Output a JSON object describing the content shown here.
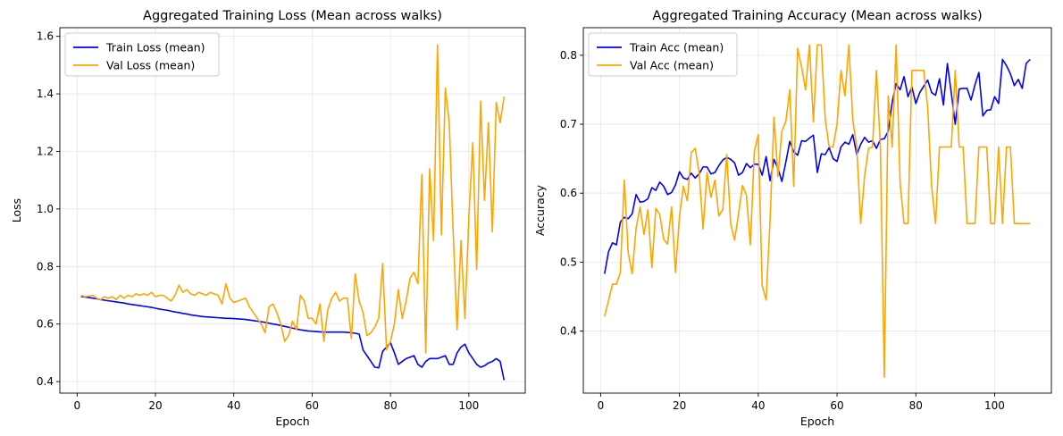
{
  "chart_data": [
    {
      "type": "line",
      "title": "Aggregated Training Loss (Mean across walks)",
      "xlabel": "Epoch",
      "ylabel": "Loss",
      "xlim": [
        -4.4,
        114.4
      ],
      "ylim": [
        0.36,
        1.63
      ],
      "xticks": [
        0,
        20,
        40,
        60,
        80,
        100
      ],
      "yticks": [
        0.4,
        0.6,
        0.8,
        1.0,
        1.2,
        1.4,
        1.6
      ],
      "ytick_decimals": 1,
      "grid": true,
      "legend_position": "top-left",
      "series": [
        {
          "name": "Train Loss (mean)",
          "color": "#0000ff",
          "x": [
            1,
            2,
            3,
            4,
            5,
            6,
            7,
            8,
            9,
            10,
            11,
            12,
            13,
            14,
            15,
            16,
            17,
            18,
            19,
            20,
            21,
            22,
            23,
            24,
            25,
            26,
            27,
            28,
            29,
            30,
            31,
            32,
            33,
            34,
            35,
            36,
            37,
            38,
            39,
            40,
            41,
            42,
            43,
            44,
            45,
            46,
            47,
            48,
            49,
            50,
            51,
            52,
            53,
            54,
            55,
            56,
            57,
            58,
            59,
            60,
            61,
            62,
            63,
            64,
            65,
            66,
            67,
            68,
            69,
            70,
            71,
            72,
            73,
            74,
            75,
            76,
            77,
            78,
            79,
            80,
            81,
            82,
            83,
            84,
            85,
            86,
            87,
            88,
            89,
            90,
            91,
            92,
            93,
            94,
            95,
            96,
            97,
            98,
            99,
            100,
            101,
            102,
            103,
            104,
            105,
            106,
            107,
            108,
            109
          ],
          "values": [
            0.696,
            0.694,
            0.692,
            0.69,
            0.688,
            0.685,
            0.683,
            0.681,
            0.679,
            0.677,
            0.675,
            0.673,
            0.67,
            0.668,
            0.666,
            0.664,
            0.662,
            0.66,
            0.658,
            0.655,
            0.652,
            0.65,
            0.648,
            0.645,
            0.642,
            0.64,
            0.637,
            0.635,
            0.632,
            0.63,
            0.628,
            0.626,
            0.625,
            0.624,
            0.623,
            0.622,
            0.621,
            0.62,
            0.62,
            0.619,
            0.618,
            0.617,
            0.616,
            0.614,
            0.612,
            0.61,
            0.608,
            0.606,
            0.603,
            0.6,
            0.598,
            0.595,
            0.592,
            0.589,
            0.586,
            0.583,
            0.58,
            0.578,
            0.576,
            0.575,
            0.574,
            0.573,
            0.572,
            0.572,
            0.572,
            0.572,
            0.572,
            0.572,
            0.571,
            0.57,
            0.568,
            0.565,
            0.51,
            0.49,
            0.47,
            0.45,
            0.448,
            0.505,
            0.52,
            0.535,
            0.5,
            0.46,
            0.47,
            0.48,
            0.485,
            0.49,
            0.46,
            0.45,
            0.47,
            0.48,
            0.48,
            0.48,
            0.485,
            0.49,
            0.46,
            0.46,
            0.5,
            0.52,
            0.53,
            0.5,
            0.48,
            0.46,
            0.45,
            0.455,
            0.465,
            0.47,
            0.48,
            0.47,
            0.405
          ]
        },
        {
          "name": "Val Loss (mean)",
          "color": "#ffa500",
          "x": [
            1,
            2,
            3,
            4,
            5,
            6,
            7,
            8,
            9,
            10,
            11,
            12,
            13,
            14,
            15,
            16,
            17,
            18,
            19,
            20,
            21,
            22,
            23,
            24,
            25,
            26,
            27,
            28,
            29,
            30,
            31,
            32,
            33,
            34,
            35,
            36,
            37,
            38,
            39,
            40,
            41,
            42,
            43,
            44,
            45,
            46,
            47,
            48,
            49,
            50,
            51,
            52,
            53,
            54,
            55,
            56,
            57,
            58,
            59,
            60,
            61,
            62,
            63,
            64,
            65,
            66,
            67,
            68,
            69,
            70,
            71,
            72,
            73,
            74,
            75,
            76,
            77,
            78,
            79,
            80,
            81,
            82,
            83,
            84,
            85,
            86,
            87,
            88,
            89,
            90,
            91,
            92,
            93,
            94,
            95,
            96,
            97,
            98,
            99,
            100,
            101,
            102,
            103,
            104,
            105,
            106,
            107,
            108,
            109
          ],
          "values": [
            0.7,
            0.695,
            0.697,
            0.7,
            0.69,
            0.685,
            0.695,
            0.69,
            0.695,
            0.685,
            0.7,
            0.69,
            0.7,
            0.695,
            0.705,
            0.7,
            0.705,
            0.7,
            0.71,
            0.695,
            0.7,
            0.7,
            0.69,
            0.68,
            0.7,
            0.735,
            0.71,
            0.72,
            0.705,
            0.7,
            0.71,
            0.705,
            0.7,
            0.71,
            0.705,
            0.7,
            0.67,
            0.74,
            0.69,
            0.675,
            0.68,
            0.685,
            0.69,
            0.66,
            0.64,
            0.62,
            0.6,
            0.57,
            0.66,
            0.67,
            0.64,
            0.6,
            0.54,
            0.56,
            0.61,
            0.58,
            0.7,
            0.68,
            0.62,
            0.62,
            0.6,
            0.67,
            0.54,
            0.65,
            0.69,
            0.71,
            0.68,
            0.69,
            0.69,
            0.55,
            0.775,
            0.68,
            0.64,
            0.56,
            0.57,
            0.59,
            0.62,
            0.81,
            0.51,
            0.54,
            0.6,
            0.72,
            0.62,
            0.68,
            0.76,
            0.78,
            0.74,
            1.12,
            0.5,
            1.14,
            0.89,
            1.57,
            0.91,
            1.42,
            1.3,
            0.92,
            0.58,
            0.89,
            0.62,
            0.97,
            1.23,
            0.79,
            1.375,
            1.03,
            1.3,
            0.92,
            1.37,
            1.3,
            1.39
          ]
        }
      ]
    },
    {
      "type": "line",
      "title": "Aggregated Training Accuracy (Mean across walks)",
      "xlabel": "Epoch",
      "ylabel": "Accuracy",
      "xlim": [
        -4.4,
        114.4
      ],
      "ylim": [
        0.31,
        0.84
      ],
      "xticks": [
        0,
        20,
        40,
        60,
        80,
        100
      ],
      "yticks": [
        0.4,
        0.5,
        0.6,
        0.7,
        0.8
      ],
      "ytick_decimals": 1,
      "grid": true,
      "legend_position": "top-left",
      "series": [
        {
          "name": "Train Acc (mean)",
          "color": "#0000ff",
          "x": [
            1,
            2,
            3,
            4,
            5,
            6,
            7,
            8,
            9,
            10,
            11,
            12,
            13,
            14,
            15,
            16,
            17,
            18,
            19,
            20,
            21,
            22,
            23,
            24,
            25,
            26,
            27,
            28,
            29,
            30,
            31,
            32,
            33,
            34,
            35,
            36,
            37,
            38,
            39,
            40,
            41,
            42,
            43,
            44,
            45,
            46,
            47,
            48,
            49,
            50,
            51,
            52,
            53,
            54,
            55,
            56,
            57,
            58,
            59,
            60,
            61,
            62,
            63,
            64,
            65,
            66,
            67,
            68,
            69,
            70,
            71,
            72,
            73,
            74,
            75,
            76,
            77,
            78,
            79,
            80,
            81,
            82,
            83,
            84,
            85,
            86,
            87,
            88,
            89,
            90,
            91,
            92,
            93,
            94,
            95,
            96,
            97,
            98,
            99,
            100,
            101,
            102,
            103,
            104,
            105,
            106,
            107,
            108,
            109
          ],
          "values": [
            0.483,
            0.515,
            0.528,
            0.525,
            0.558,
            0.565,
            0.563,
            0.57,
            0.598,
            0.587,
            0.588,
            0.592,
            0.608,
            0.604,
            0.616,
            0.61,
            0.598,
            0.601,
            0.612,
            0.631,
            0.622,
            0.62,
            0.629,
            0.622,
            0.628,
            0.638,
            0.638,
            0.628,
            0.63,
            0.64,
            0.648,
            0.652,
            0.649,
            0.644,
            0.626,
            0.63,
            0.643,
            0.637,
            0.642,
            0.642,
            0.626,
            0.653,
            0.618,
            0.649,
            0.636,
            0.617,
            0.645,
            0.675,
            0.66,
            0.655,
            0.676,
            0.675,
            0.68,
            0.684,
            0.63,
            0.657,
            0.656,
            0.666,
            0.65,
            0.646,
            0.667,
            0.674,
            0.671,
            0.685,
            0.656,
            0.671,
            0.681,
            0.674,
            0.676,
            0.665,
            0.678,
            0.679,
            0.69,
            0.732,
            0.759,
            0.75,
            0.769,
            0.74,
            0.754,
            0.73,
            0.746,
            0.755,
            0.764,
            0.746,
            0.742,
            0.766,
            0.728,
            0.788,
            0.745,
            0.7,
            0.751,
            0.752,
            0.752,
            0.735,
            0.757,
            0.775,
            0.712,
            0.72,
            0.721,
            0.74,
            0.73,
            0.794,
            0.785,
            0.773,
            0.756,
            0.765,
            0.752,
            0.788,
            0.794
          ]
        },
        {
          "name": "Val Acc (mean)",
          "color": "#ffa500",
          "x": [
            1,
            2,
            3,
            4,
            5,
            6,
            7,
            8,
            9,
            10,
            11,
            12,
            13,
            14,
            15,
            16,
            17,
            18,
            19,
            20,
            21,
            22,
            23,
            24,
            25,
            26,
            27,
            28,
            29,
            30,
            31,
            32,
            33,
            34,
            35,
            36,
            37,
            38,
            39,
            40,
            41,
            42,
            43,
            44,
            45,
            46,
            47,
            48,
            49,
            50,
            51,
            52,
            53,
            54,
            55,
            56,
            57,
            58,
            59,
            60,
            61,
            62,
            63,
            64,
            65,
            66,
            67,
            68,
            69,
            70,
            71,
            72,
            73,
            74,
            75,
            76,
            77,
            78,
            79,
            80,
            81,
            82,
            83,
            84,
            85,
            86,
            87,
            88,
            89,
            90,
            91,
            92,
            93,
            94,
            95,
            96,
            97,
            98,
            99,
            100,
            101,
            102,
            103,
            104,
            105,
            106,
            107,
            108,
            109
          ],
          "values": [
            0.421,
            0.444,
            0.468,
            0.468,
            0.485,
            0.619,
            0.514,
            0.483,
            0.549,
            0.58,
            0.54,
            0.576,
            0.492,
            0.578,
            0.569,
            0.533,
            0.526,
            0.58,
            0.485,
            0.566,
            0.61,
            0.589,
            0.659,
            0.665,
            0.63,
            0.548,
            0.63,
            0.594,
            0.619,
            0.567,
            0.576,
            0.656,
            0.556,
            0.532,
            0.57,
            0.611,
            0.597,
            0.525,
            0.66,
            0.685,
            0.466,
            0.445,
            0.56,
            0.71,
            0.624,
            0.69,
            0.704,
            0.75,
            0.61,
            0.81,
            0.783,
            0.75,
            0.815,
            0.703,
            0.815,
            0.815,
            0.708,
            0.667,
            0.667,
            0.7,
            0.778,
            0.741,
            0.815,
            0.706,
            0.667,
            0.556,
            0.625,
            0.665,
            0.667,
            0.778,
            0.667,
            0.333,
            0.741,
            0.667,
            0.815,
            0.615,
            0.556,
            0.556,
            0.778,
            0.778,
            0.778,
            0.778,
            0.725,
            0.61,
            0.556,
            0.667,
            0.667,
            0.667,
            0.667,
            0.778,
            0.667,
            0.667,
            0.556,
            0.556,
            0.556,
            0.667,
            0.667,
            0.667,
            0.556,
            0.556,
            0.667,
            0.556,
            0.667,
            0.667,
            0.556,
            0.556,
            0.556,
            0.556,
            0.556
          ]
        }
      ]
    }
  ]
}
